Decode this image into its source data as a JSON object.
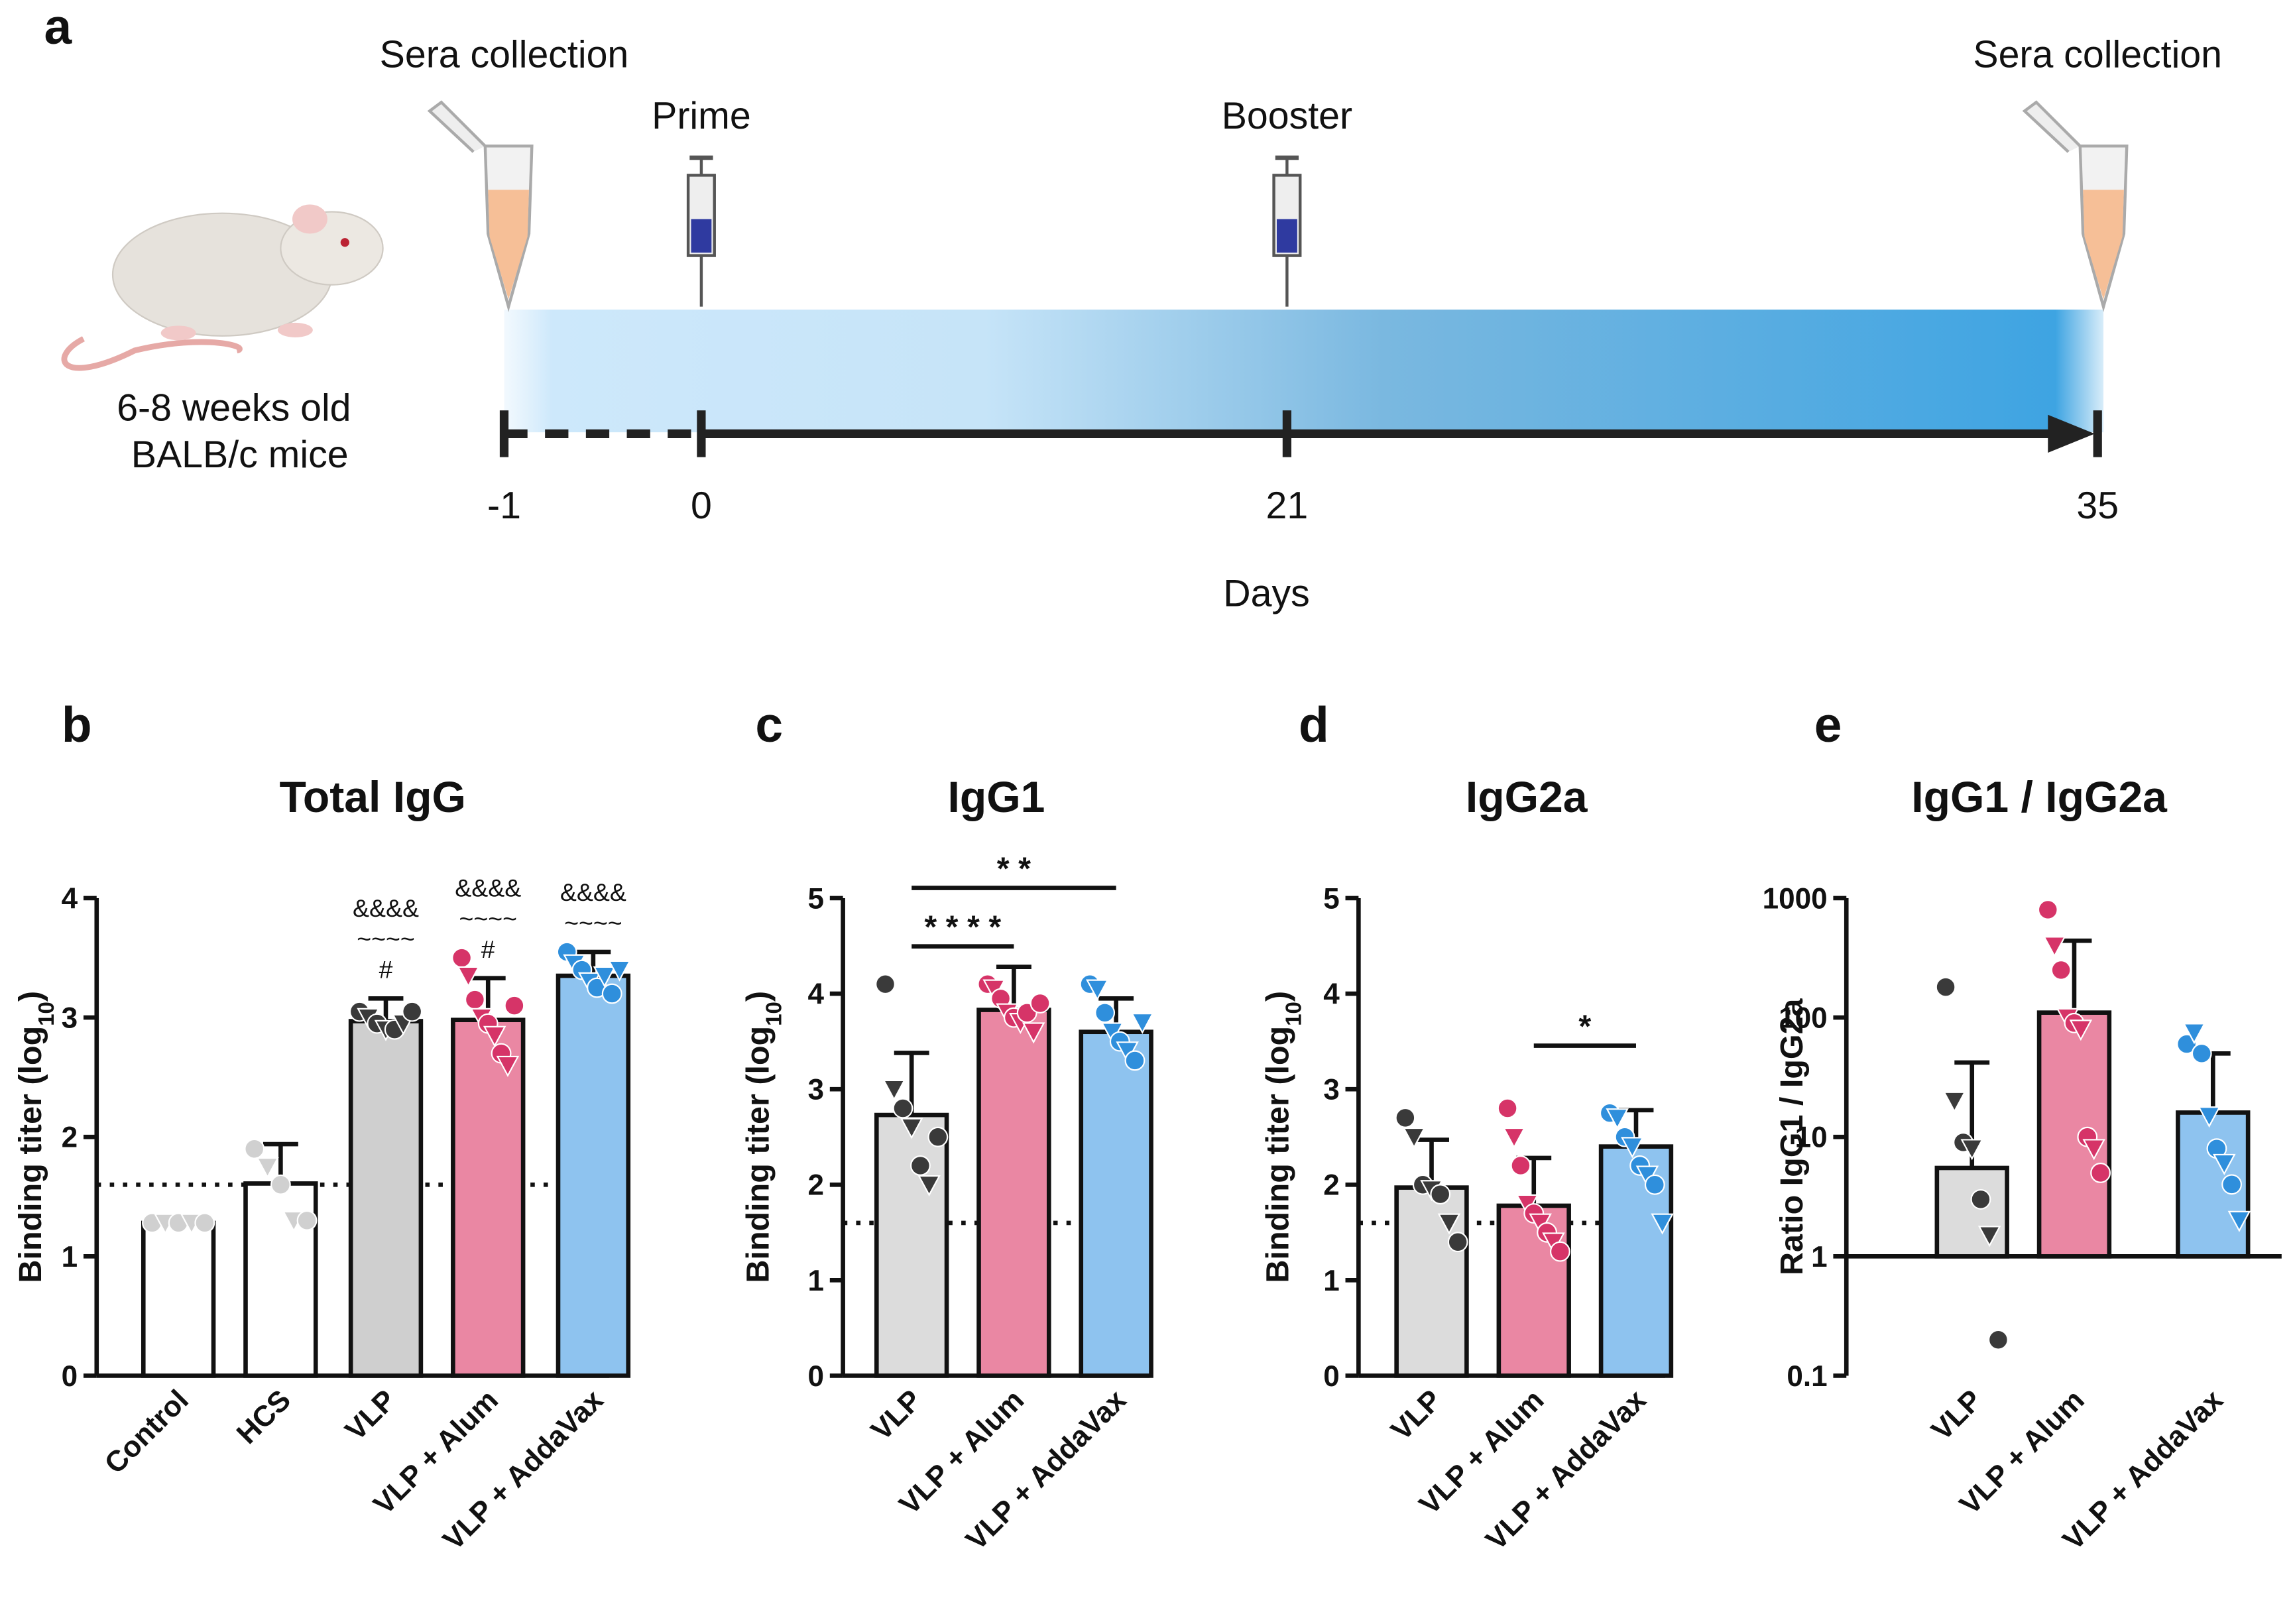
{
  "timeline": {
    "panel_label": "a",
    "mouse_label": [
      "6-8 weeks old",
      "BALB/c mice"
    ],
    "events": [
      "Sera collection",
      "Prime",
      "Booster",
      "Sera collection"
    ],
    "ticks": [
      "-1",
      "0",
      "21",
      "35"
    ],
    "axis_label": "Days"
  },
  "chart_data": [
    {
      "type": "bar",
      "panel_label": "b",
      "title": "Total IgG",
      "ylabel_parts": [
        "Binding titer (log",
        "10",
        ")"
      ],
      "categories": [
        "Control",
        "HCS",
        "VLP",
        "VLP + Alum",
        "VLP + AddaVax"
      ],
      "values": [
        1.28,
        1.61,
        2.97,
        2.98,
        3.35
      ],
      "errors": [
        0.02,
        0.33,
        0.19,
        0.35,
        0.2
      ],
      "colors": [
        "#ffffff",
        "#ffffff",
        "#cfcfcf",
        "#ea87a3",
        "#8ec3ef"
      ],
      "point_colors": [
        "#d0d0d0",
        "#d0d0d0",
        "#3a3a3a",
        "#d63468",
        "#2f8fdc"
      ],
      "points": [
        [
          1.28,
          1.28,
          1.28,
          1.28,
          1.28
        ],
        [
          1.9,
          1.75,
          1.6,
          1.3,
          1.3
        ],
        [
          3.05,
          3.0,
          2.95,
          2.9,
          2.9,
          2.95,
          3.05
        ],
        [
          3.5,
          3.35,
          3.15,
          3.0,
          2.95,
          2.85,
          2.7,
          2.6,
          3.1
        ],
        [
          3.55,
          3.45,
          3.4,
          3.3,
          3.25,
          3.35,
          3.2,
          3.4
        ]
      ],
      "annotations": [
        [],
        [],
        [
          "&&&&",
          "~~~~",
          "#"
        ],
        [
          "&&&&",
          "~~~~",
          "#"
        ],
        [
          "&&&&",
          "~~~~"
        ]
      ],
      "threshold": 1.6,
      "ylim": [
        0,
        4
      ],
      "yticks": [
        0,
        1,
        2,
        3,
        4
      ],
      "log_scale": false,
      "significance": []
    },
    {
      "type": "bar",
      "panel_label": "c",
      "title": "IgG1",
      "ylabel_parts": [
        "Binding titer (log",
        "10",
        ")"
      ],
      "categories": [
        "VLP",
        "VLP + Alum",
        "VLP + AddaVax"
      ],
      "values": [
        2.73,
        3.83,
        3.6
      ],
      "errors": [
        0.65,
        0.45,
        0.35
      ],
      "colors": [
        "#dcdcdc",
        "#ea87a3",
        "#8ec3ef"
      ],
      "point_colors": [
        "#3a3a3a",
        "#d63468",
        "#2f8fdc"
      ],
      "points": [
        [
          4.1,
          3.0,
          2.8,
          2.6,
          2.2,
          2.0,
          2.5
        ],
        [
          4.1,
          4.05,
          3.95,
          3.8,
          3.75,
          3.7,
          3.8,
          3.6,
          3.9
        ],
        [
          4.1,
          4.05,
          3.8,
          3.6,
          3.5,
          3.4,
          3.3,
          3.7
        ]
      ],
      "threshold": 1.6,
      "ylim": [
        0,
        5
      ],
      "yticks": [
        0,
        1,
        2,
        3,
        4,
        5
      ],
      "log_scale": false,
      "significance": [
        {
          "groups": [
            "VLP",
            "VLP + AddaVax"
          ],
          "label": "* *"
        },
        {
          "groups": [
            "VLP",
            "VLP + Alum"
          ],
          "label": "* * * *"
        }
      ]
    },
    {
      "type": "bar",
      "panel_label": "d",
      "title": "IgG2a",
      "ylabel_parts": [
        "Binding titer (log",
        "10",
        ")"
      ],
      "categories": [
        "VLP",
        "VLP + Alum",
        "VLP + AddaVax"
      ],
      "values": [
        1.97,
        1.78,
        2.4
      ],
      "errors": [
        0.5,
        0.5,
        0.38
      ],
      "colors": [
        "#dcdcdc",
        "#ea87a3",
        "#8ec3ef"
      ],
      "point_colors": [
        "#3a3a3a",
        "#d63468",
        "#2f8fdc"
      ],
      "points": [
        [
          2.7,
          2.5,
          2.0,
          1.95,
          1.9,
          1.6,
          1.4
        ],
        [
          2.8,
          2.5,
          2.2,
          1.8,
          1.7,
          1.6,
          1.5,
          1.4,
          1.3
        ],
        [
          2.75,
          2.7,
          2.5,
          2.4,
          2.2,
          2.1,
          2.0,
          1.6
        ]
      ],
      "threshold": 1.6,
      "ylim": [
        0,
        5
      ],
      "yticks": [
        0,
        1,
        2,
        3,
        4,
        5
      ],
      "log_scale": false,
      "significance": [
        {
          "groups": [
            "VLP + Alum",
            "VLP + AddaVax"
          ],
          "label": "*"
        }
      ]
    },
    {
      "type": "bar",
      "panel_label": "e",
      "title": "IgG1 / IgG2a",
      "ylabel_parts": [
        "Ratio IgG1 / IgG2a"
      ],
      "categories": [
        "VLP",
        "VLP + Alum",
        "VLP + AddaVax"
      ],
      "values": [
        5.5,
        110,
        16
      ],
      "errors": [
        36.5,
        330,
        34
      ],
      "colors": [
        "#dcdcdc",
        "#ea87a3",
        "#8ec3ef"
      ],
      "point_colors": [
        "#3a3a3a",
        "#d63468",
        "#2f8fdc"
      ],
      "points": [
        [
          180,
          20,
          9,
          8,
          3,
          1.5,
          0.2
        ],
        [
          800,
          400,
          250,
          100,
          90,
          80,
          10,
          8,
          5
        ],
        [
          60,
          75,
          50,
          15,
          8,
          6,
          4,
          2
        ]
      ],
      "ylim": [
        0.1,
        1000
      ],
      "yticks": [
        0.1,
        1,
        10,
        100,
        1000
      ],
      "log_scale": true,
      "significance": []
    }
  ]
}
